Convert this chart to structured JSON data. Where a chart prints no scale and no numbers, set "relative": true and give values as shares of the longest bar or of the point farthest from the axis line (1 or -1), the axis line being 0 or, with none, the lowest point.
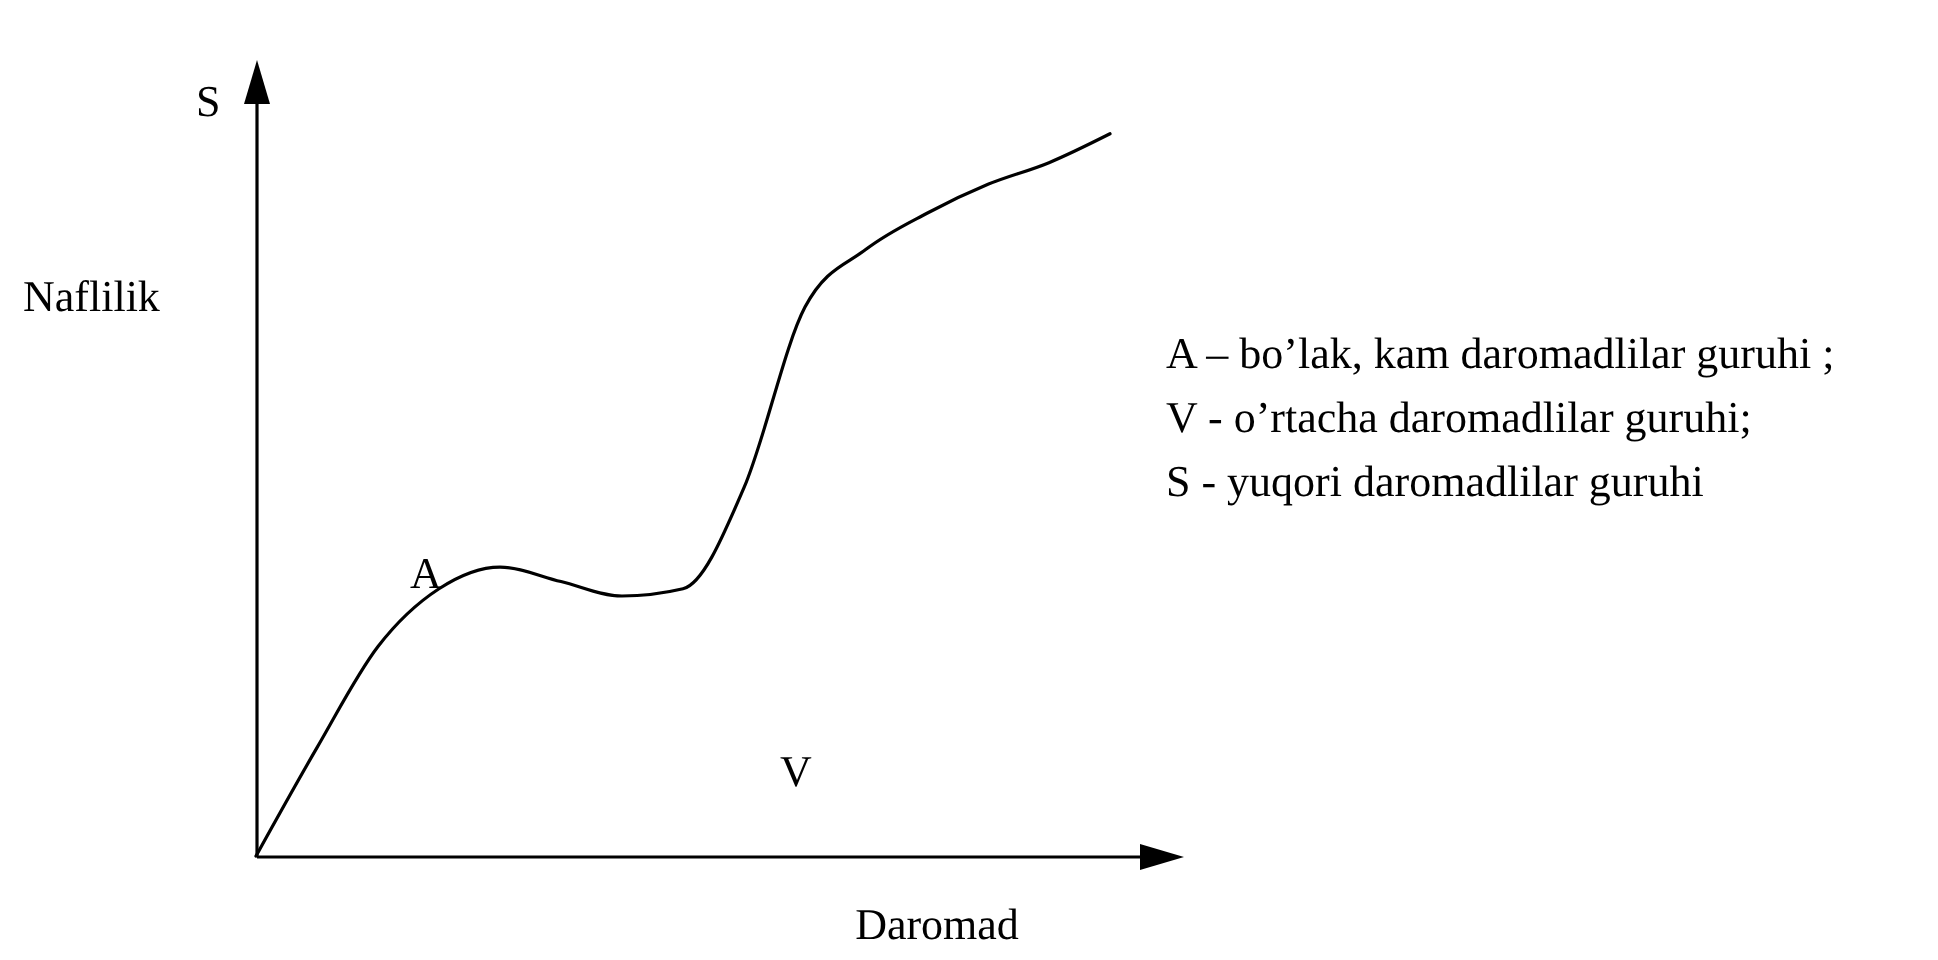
{
  "chart_data": {
    "type": "line",
    "relative": true,
    "xlabel": "Daromad",
    "ylabel": "Naflilik",
    "categories": [
      null,
      null,
      null,
      null,
      null,
      null,
      null,
      null,
      null,
      null,
      null,
      null,
      null,
      null,
      null
    ],
    "series": [
      {
        "color": "#000000",
        "values": [
          0,
          0.15,
          0.29,
          0.37,
          0.4,
          0.38,
          0.36,
          0.37,
          0.51,
          0.76,
          0.84,
          0.89,
          0.93,
          0.96,
          1
        ]
      }
    ],
    "marker": "none",
    "line_style": "solid",
    "grid": false,
    "legend": false,
    "annotations": [
      "S",
      "A",
      "V",
      "A – bo’lak, kam daromadlilar guruhi ;",
      "V - o’rtacha daromadlilar guruhi;",
      "S - yuqori daromadlilar guruhi"
    ]
  }
}
